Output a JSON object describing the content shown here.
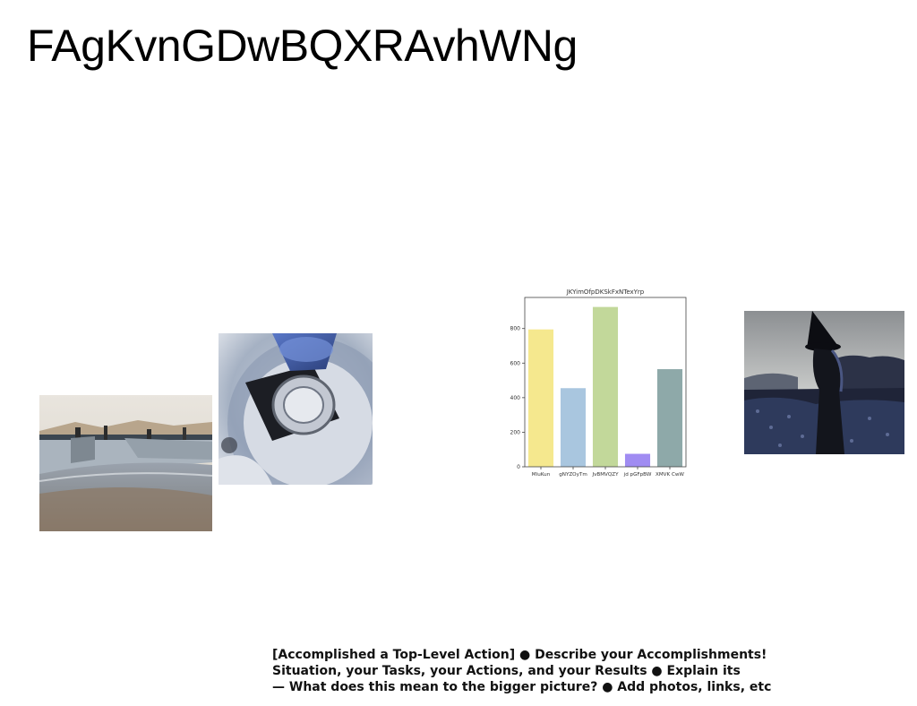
{
  "title": "FAgKvnGDwBQXRAvhWNg",
  "photos": [
    {
      "name": "skatepark-photo",
      "subject": "skatepark bowl with skaters"
    },
    {
      "name": "bottle-photo",
      "subject": "bottle top on dark coaster, blue tint"
    },
    {
      "name": "witch-photo",
      "subject": "figure in pointed witch hat in a dark field"
    }
  ],
  "chart_data": {
    "type": "bar",
    "title": "JKYimOfpDKSkFxNTexYrp",
    "categories": [
      "MIuKun",
      "gNYZOyTm",
      "JvBMVQZY",
      "jd pGFpBW",
      "XMVK CwW"
    ],
    "values": [
      795,
      455,
      925,
      75,
      565
    ],
    "colors": [
      "#f5e88e",
      "#a9c6df",
      "#c2d89a",
      "#a08cf2",
      "#8ea9a9"
    ],
    "ylim": [
      0,
      980
    ],
    "yticks": [
      "0",
      "200",
      "400",
      "600",
      "800"
    ],
    "xlabel": "",
    "ylabel": "",
    "grid": false
  },
  "caption": {
    "line1": "[Accomplished a Top-Level Action] ● Describe your Accomplishments!",
    "line2": "Situation, your Tasks, your Actions, and your Results ● Explain its",
    "line3": "— What does this mean to the bigger picture? ● Add photos, links, etc"
  }
}
